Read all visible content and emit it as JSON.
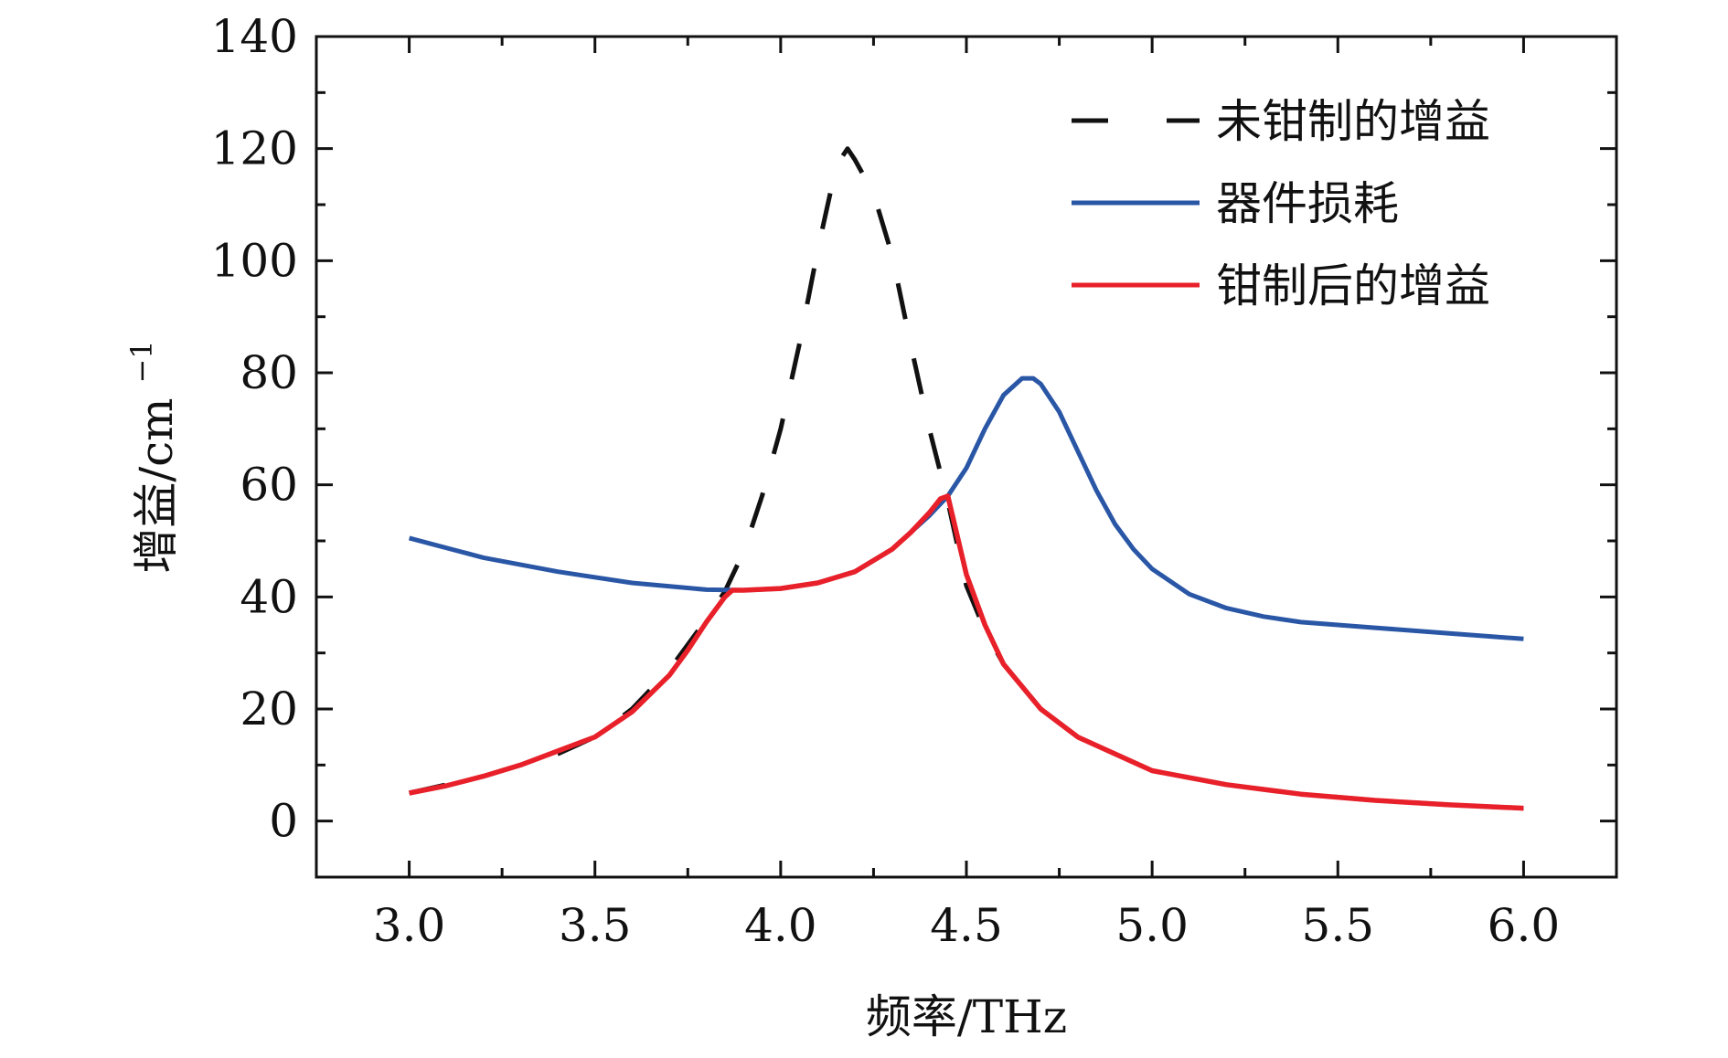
{
  "chart_data": {
    "type": "line",
    "xlabel": "频率/THz",
    "ylabel": "增益/cm",
    "ylabel_superscript": "−1",
    "xlim": [
      2.75,
      6.25
    ],
    "ylim": [
      -10,
      140
    ],
    "x_ticks": [
      3.0,
      3.5,
      4.0,
      4.5,
      5.0,
      5.5,
      6.0
    ],
    "x_tick_labels": [
      "3.0",
      "3.5",
      "4.0",
      "4.5",
      "5.0",
      "5.5",
      "6.0"
    ],
    "y_ticks": [
      0,
      20,
      40,
      60,
      80,
      100,
      120,
      140
    ],
    "y_tick_labels": [
      "0",
      "20",
      "40",
      "60",
      "80",
      "100",
      "120",
      "140"
    ],
    "grid": false,
    "legend_position": "top-right",
    "series": [
      {
        "name": "未钳制的增益",
        "color": "#111111",
        "style": "dashed",
        "x": [
          3.0,
          3.2,
          3.4,
          3.5,
          3.6,
          3.7,
          3.8,
          3.85,
          3.9,
          3.95,
          4.0,
          4.05,
          4.1,
          4.15,
          4.18,
          4.2,
          4.25,
          4.3,
          4.35,
          4.4,
          4.45,
          4.5,
          4.55,
          4.6,
          4.7,
          4.8,
          4.9,
          5.0,
          5.2,
          5.4,
          5.6,
          5.8,
          6.0
        ],
        "y": [
          5,
          8,
          12,
          15,
          20,
          27,
          36,
          41,
          48,
          58,
          70,
          85,
          102,
          117,
          120,
          118,
          112,
          101,
          85,
          70,
          57,
          42,
          34,
          28,
          20,
          15,
          12,
          9,
          6.5,
          4.8,
          3.7,
          2.9,
          2.3
        ]
      },
      {
        "name": "器件损耗",
        "color": "#2a56a6",
        "style": "solid",
        "x": [
          3.0,
          3.2,
          3.4,
          3.6,
          3.8,
          3.9,
          4.0,
          4.1,
          4.2,
          4.3,
          4.4,
          4.45,
          4.5,
          4.55,
          4.6,
          4.65,
          4.68,
          4.7,
          4.75,
          4.8,
          4.85,
          4.9,
          4.95,
          5.0,
          5.1,
          5.2,
          5.3,
          5.4,
          5.6,
          5.8,
          6.0
        ],
        "y": [
          50.5,
          47,
          44.5,
          42.5,
          41.3,
          41.2,
          41.5,
          42.5,
          44.5,
          48.5,
          54.5,
          58,
          63,
          70,
          76,
          79,
          79,
          78,
          73,
          66,
          59,
          53,
          48.5,
          45,
          40.5,
          38,
          36.5,
          35.5,
          34.5,
          33.5,
          32.5
        ]
      },
      {
        "name": "钳制后的增益",
        "color": "#e8202a",
        "style": "solid",
        "x": [
          3.0,
          3.1,
          3.2,
          3.3,
          3.4,
          3.5,
          3.6,
          3.7,
          3.75,
          3.8,
          3.85,
          3.87,
          3.9,
          4.0,
          4.1,
          4.2,
          4.3,
          4.35,
          4.4,
          4.43,
          4.45,
          4.5,
          4.55,
          4.6,
          4.7,
          4.8,
          4.9,
          5.0,
          5.2,
          5.4,
          5.6,
          5.8,
          6.0
        ],
        "y": [
          5,
          6.3,
          8,
          10,
          12.5,
          15,
          19.5,
          26,
          30.5,
          35.5,
          40,
          41.2,
          41.2,
          41.5,
          42.5,
          44.5,
          48.5,
          51.5,
          55,
          57.5,
          58,
          44,
          35,
          28,
          20,
          15,
          12,
          9,
          6.5,
          4.8,
          3.7,
          2.9,
          2.3
        ]
      }
    ]
  }
}
